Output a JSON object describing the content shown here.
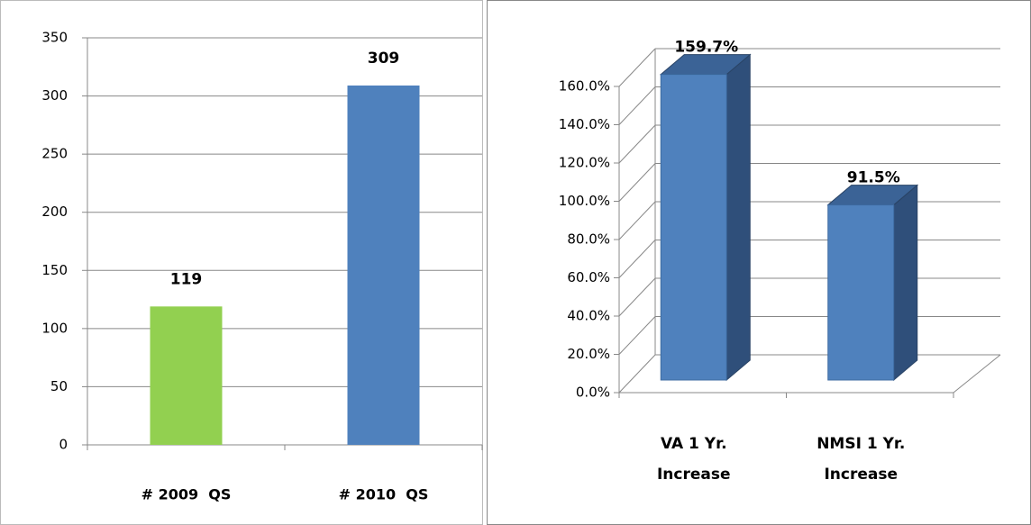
{
  "chart_data": [
    {
      "type": "bar",
      "categories": [
        "# 2009  QS",
        "# 2010  QS"
      ],
      "values": [
        119,
        309
      ],
      "colors": [
        "#92d050",
        "#4f81bd"
      ],
      "ylim": [
        0,
        350
      ],
      "yticks": [
        0,
        50,
        100,
        150,
        200,
        250,
        300,
        350
      ],
      "grid": true
    },
    {
      "type": "bar3d",
      "categories": [
        "VA 1 Yr. Increase",
        "NMSI 1 Yr. Increase"
      ],
      "values": [
        159.7,
        91.5
      ],
      "value_labels": [
        "159.7%",
        "91.5%"
      ],
      "color": "#4f81bd",
      "ylim": [
        0,
        160
      ],
      "yticks": [
        {
          "value": 0,
          "label": "0.0%"
        },
        {
          "value": 20,
          "label": "20.0%"
        },
        {
          "value": 40,
          "label": "40.0%"
        },
        {
          "value": 60,
          "label": "60.0%"
        },
        {
          "value": 80,
          "label": "80.0%"
        },
        {
          "value": 100,
          "label": "100.0%"
        },
        {
          "value": 120,
          "label": "120.0%"
        },
        {
          "value": 140,
          "label": "140.0%"
        },
        {
          "value": 160,
          "label": "160.0%"
        }
      ],
      "grid": true
    }
  ]
}
